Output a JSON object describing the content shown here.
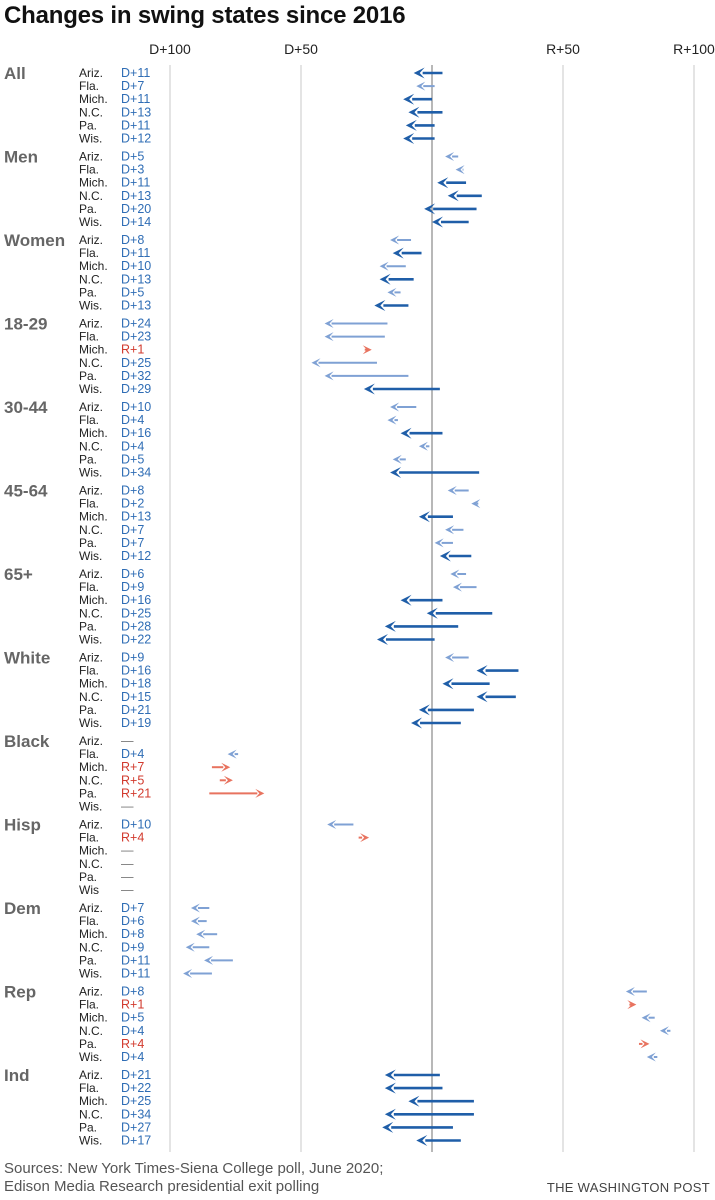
{
  "title": "Changes in swing states since 2016",
  "sources_line1": "Sources: New York Times-Siena College poll, June 2020;",
  "sources_line2": "Edison Media Research presidential exit polling",
  "credit": "THE WASHINGTON POST",
  "colors": {
    "dem_big": "#1f5ea8",
    "dem_light": "#7fa1d4",
    "rep": "#e8735f",
    "rep_text": "#d23a2d",
    "dem_text": "#2f6db5",
    "grid": "#c8c8c8",
    "zero": "#888888",
    "dash": "#888888"
  },
  "chart_data": {
    "type": "arrow",
    "x_axis": {
      "ticks": [
        {
          "value": -100,
          "label": "D+100"
        },
        {
          "value": -50,
          "label": "D+50"
        },
        {
          "value": 50,
          "label": "R+50"
        },
        {
          "value": 100,
          "label": "R+100"
        }
      ],
      "range": [
        -100,
        100
      ],
      "note": "negative = Democratic margin, positive = Republican margin"
    },
    "groups": [
      {
        "name": "All",
        "rows": [
          {
            "state": "Ariz.",
            "change": "D+11",
            "from": 4,
            "to": -7
          },
          {
            "state": "Fla.",
            "change": "D+7",
            "from": 1,
            "to": -6
          },
          {
            "state": "Mich.",
            "change": "D+11",
            "from": 0,
            "to": -11
          },
          {
            "state": "N.C.",
            "change": "D+13",
            "from": 4,
            "to": -9
          },
          {
            "state": "Pa.",
            "change": "D+11",
            "from": 1,
            "to": -10
          },
          {
            "state": "Wis.",
            "change": "D+12",
            "from": 1,
            "to": -11
          }
        ]
      },
      {
        "name": "Men",
        "rows": [
          {
            "state": "Ariz.",
            "change": "D+5",
            "from": 10,
            "to": 5
          },
          {
            "state": "Fla.",
            "change": "D+3",
            "from": 12,
            "to": 9
          },
          {
            "state": "Mich.",
            "change": "D+11",
            "from": 13,
            "to": 2
          },
          {
            "state": "N.C.",
            "change": "D+13",
            "from": 19,
            "to": 6
          },
          {
            "state": "Pa.",
            "change": "D+20",
            "from": 17,
            "to": -3
          },
          {
            "state": "Wis.",
            "change": "D+14",
            "from": 14,
            "to": 0
          }
        ]
      },
      {
        "name": "Women",
        "rows": [
          {
            "state": "Ariz.",
            "change": "D+8",
            "from": -8,
            "to": -16
          },
          {
            "state": "Fla.",
            "change": "D+11",
            "from": -4,
            "to": -15
          },
          {
            "state": "Mich.",
            "change": "D+10",
            "from": -10,
            "to": -20
          },
          {
            "state": "N.C.",
            "change": "D+13",
            "from": -7,
            "to": -20
          },
          {
            "state": "Pa.",
            "change": "D+5",
            "from": -12,
            "to": -17
          },
          {
            "state": "Wis.",
            "change": "D+13",
            "from": -9,
            "to": -22
          }
        ]
      },
      {
        "name": "18-29",
        "rows": [
          {
            "state": "Ariz.",
            "change": "D+24",
            "from": -17,
            "to": -41
          },
          {
            "state": "Fla.",
            "change": "D+23",
            "from": -18,
            "to": -41
          },
          {
            "state": "Mich.",
            "change": "R+1",
            "from": -24,
            "to": -23
          },
          {
            "state": "N.C.",
            "change": "D+25",
            "from": -21,
            "to": -46
          },
          {
            "state": "Pa.",
            "change": "D+32",
            "from": -9,
            "to": -41
          },
          {
            "state": "Wis.",
            "change": "D+29",
            "from": 3,
            "to": -26
          }
        ]
      },
      {
        "name": "30-44",
        "rows": [
          {
            "state": "Ariz.",
            "change": "D+10",
            "from": -6,
            "to": -16
          },
          {
            "state": "Fla.",
            "change": "D+4",
            "from": -13,
            "to": -17
          },
          {
            "state": "Mich.",
            "change": "D+16",
            "from": 4,
            "to": -12
          },
          {
            "state": "N.C.",
            "change": "D+4",
            "from": -1,
            "to": -5
          },
          {
            "state": "Pa.",
            "change": "D+5",
            "from": -10,
            "to": -15
          },
          {
            "state": "Wis.",
            "change": "D+34",
            "from": 18,
            "to": -16
          }
        ]
      },
      {
        "name": "45-64",
        "rows": [
          {
            "state": "Ariz.",
            "change": "D+8",
            "from": 14,
            "to": 6
          },
          {
            "state": "Fla.",
            "change": "D+2",
            "from": 17,
            "to": 15
          },
          {
            "state": "Mich.",
            "change": "D+13",
            "from": 8,
            "to": -5
          },
          {
            "state": "N.C.",
            "change": "D+7",
            "from": 12,
            "to": 5
          },
          {
            "state": "Pa.",
            "change": "D+7",
            "from": 8,
            "to": 1
          },
          {
            "state": "Wis.",
            "change": "D+12",
            "from": 15,
            "to": 3
          }
        ]
      },
      {
        "name": "65+",
        "rows": [
          {
            "state": "Ariz.",
            "change": "D+6",
            "from": 13,
            "to": 7
          },
          {
            "state": "Fla.",
            "change": "D+9",
            "from": 17,
            "to": 8
          },
          {
            "state": "Mich.",
            "change": "D+16",
            "from": 4,
            "to": -12
          },
          {
            "state": "N.C.",
            "change": "D+25",
            "from": 23,
            "to": -2
          },
          {
            "state": "Pa.",
            "change": "D+28",
            "from": 10,
            "to": -18
          },
          {
            "state": "Wis.",
            "change": "D+22",
            "from": 1,
            "to": -21
          }
        ]
      },
      {
        "name": "White",
        "rows": [
          {
            "state": "Ariz.",
            "change": "D+9",
            "from": 14,
            "to": 5
          },
          {
            "state": "Fla.",
            "change": "D+16",
            "from": 33,
            "to": 17
          },
          {
            "state": "Mich.",
            "change": "D+18",
            "from": 22,
            "to": 4
          },
          {
            "state": "N.C.",
            "change": "D+15",
            "from": 32,
            "to": 17
          },
          {
            "state": "Pa.",
            "change": "D+21",
            "from": 16,
            "to": -5
          },
          {
            "state": "Wis.",
            "change": "D+19",
            "from": 11,
            "to": -8
          }
        ]
      },
      {
        "name": "Black",
        "rows": [
          {
            "state": "Ariz.",
            "change": "—",
            "from": null,
            "to": null
          },
          {
            "state": "Fla.",
            "change": "D+4",
            "from": -74,
            "to": -78
          },
          {
            "state": "Mich.",
            "change": "R+7",
            "from": -84,
            "to": -77
          },
          {
            "state": "N.C.",
            "change": "R+5",
            "from": -81,
            "to": -76
          },
          {
            "state": "Pa.",
            "change": "R+21",
            "from": -85,
            "to": -64
          },
          {
            "state": "Wis.",
            "change": "—",
            "from": null,
            "to": null
          }
        ]
      },
      {
        "name": "Hisp",
        "rows": [
          {
            "state": "Ariz.",
            "change": "D+10",
            "from": -30,
            "to": -40
          },
          {
            "state": "Fla.",
            "change": "R+4",
            "from": -28,
            "to": -24
          },
          {
            "state": "Mich.",
            "change": "—",
            "from": null,
            "to": null
          },
          {
            "state": "N.C.",
            "change": "—",
            "from": null,
            "to": null
          },
          {
            "state": "Pa.",
            "change": "—",
            "from": null,
            "to": null
          },
          {
            "state": "Wis",
            "change": "—",
            "from": null,
            "to": null
          }
        ]
      },
      {
        "name": "Dem",
        "rows": [
          {
            "state": "Ariz.",
            "change": "D+7",
            "from": -85,
            "to": -92
          },
          {
            "state": "Fla.",
            "change": "D+6",
            "from": -86,
            "to": -92
          },
          {
            "state": "Mich.",
            "change": "D+8",
            "from": -82,
            "to": -90
          },
          {
            "state": "N.C.",
            "change": "D+9",
            "from": -85,
            "to": -94
          },
          {
            "state": "Pa.",
            "change": "D+11",
            "from": -76,
            "to": -87
          },
          {
            "state": "Wis.",
            "change": "D+11",
            "from": -84,
            "to": -95
          }
        ]
      },
      {
        "name": "Rep",
        "rows": [
          {
            "state": "Ariz.",
            "change": "D+8",
            "from": 82,
            "to": 74
          },
          {
            "state": "Fla.",
            "change": "R+1",
            "from": 77,
            "to": 78
          },
          {
            "state": "Mich.",
            "change": "D+5",
            "from": 85,
            "to": 80
          },
          {
            "state": "N.C.",
            "change": "D+4",
            "from": 91,
            "to": 87
          },
          {
            "state": "Pa.",
            "change": "R+4",
            "from": 79,
            "to": 83
          },
          {
            "state": "Wis.",
            "change": "D+4",
            "from": 86,
            "to": 82
          }
        ]
      },
      {
        "name": "Ind",
        "rows": [
          {
            "state": "Ariz.",
            "change": "D+21",
            "from": 3,
            "to": -18
          },
          {
            "state": "Fla.",
            "change": "D+22",
            "from": 4,
            "to": -18
          },
          {
            "state": "Mich.",
            "change": "D+25",
            "from": 16,
            "to": -9
          },
          {
            "state": "N.C.",
            "change": "D+34",
            "from": 16,
            "to": -18
          },
          {
            "state": "Pa.",
            "change": "D+27",
            "from": 8,
            "to": -19
          },
          {
            "state": "Wis.",
            "change": "D+17",
            "from": 11,
            "to": -6
          }
        ]
      }
    ]
  }
}
